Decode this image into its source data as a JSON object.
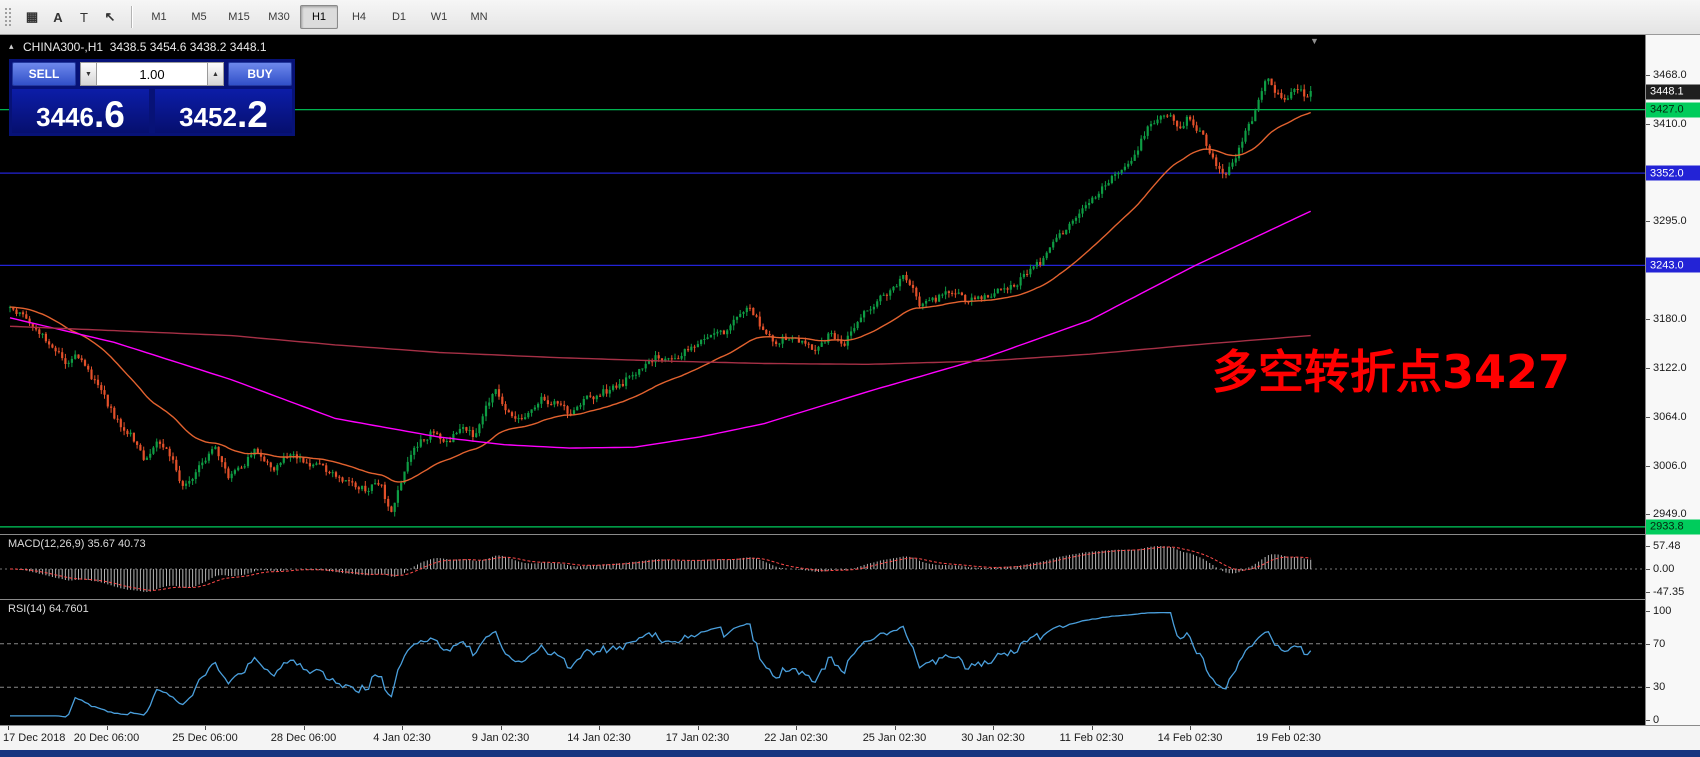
{
  "toolbar": {
    "icons": [
      {
        "name": "market-watch-icon",
        "glyph": "▦"
      },
      {
        "name": "insert-text-icon",
        "glyph": "A"
      },
      {
        "name": "text-label-icon",
        "glyph": "T"
      },
      {
        "name": "drawing-tools-icon",
        "glyph": "↖"
      }
    ],
    "timeframes": [
      "M1",
      "M5",
      "M15",
      "M30",
      "H1",
      "H4",
      "D1",
      "W1",
      "MN"
    ],
    "active_timeframe": "H1"
  },
  "chart": {
    "header": "CHINA300-,H1  3438.5 3454.6 3438.2 3448.1",
    "annotation": "多空转折点3427",
    "annotation_color": "#FF0000",
    "toggle_glyph": "▴",
    "shift_marker_glyph": "▼"
  },
  "trade_panel": {
    "sell_label": "SELL",
    "buy_label": "BUY",
    "volume": "1.00",
    "volume_down_glyph": "▼",
    "volume_up_glyph": "▲",
    "sell_price_main": "3446",
    "sell_price_pip": ".6",
    "buy_price_main": "3452",
    "buy_price_pip": ".2"
  },
  "indicators": {
    "macd_label": "MACD(12,26,9) 35.67 40.73",
    "rsi_label": "RSI(14) 64.7601"
  },
  "chart_data": {
    "type": "candlestick",
    "symbol": "CHINA300-",
    "timeframe": "H1",
    "header_ohlc": {
      "open": 3438.5,
      "high": 3454.6,
      "low": 3438.2,
      "close": 3448.1
    },
    "bid": 3446.6,
    "ask": 3452.2,
    "price_range_view": [
      2920,
      3485
    ],
    "price_axis_labels": [
      3468.0,
      3410.0,
      3295.0,
      3180.0,
      3122.0,
      3064.0,
      3006.0,
      2949.0
    ],
    "price_badges": [
      {
        "value": "3448.1",
        "price": 3448.1,
        "type": "last"
      },
      {
        "value": "3427.0",
        "price": 3427.0,
        "type": "green"
      },
      {
        "value": "3352.0",
        "price": 3352.0,
        "type": "blue"
      },
      {
        "value": "3243.0",
        "price": 3243.0,
        "type": "blue"
      },
      {
        "value": "2933.8",
        "price": 2933.8,
        "type": "green"
      }
    ],
    "hlines": [
      {
        "price": 3427.0,
        "color": "#00CC5C"
      },
      {
        "price": 3352.0,
        "color": "#2323D6"
      },
      {
        "price": 3243.0,
        "color": "#2323D6"
      },
      {
        "price": 2933.8,
        "color": "#00CC5C"
      }
    ],
    "time_labels": [
      "17 Dec 2018",
      "20 Dec 06:00",
      "25 Dec 06:00",
      "28 Dec 06:00",
      "4 Jan 02:30",
      "9 Jan 02:30",
      "14 Jan 02:30",
      "17 Jan 02:30",
      "22 Jan 02:30",
      "25 Jan 02:30",
      "30 Jan 02:30",
      "11 Feb 02:30",
      "14 Feb 02:30",
      "19 Feb 02:30"
    ],
    "candles": {
      "count": 400,
      "up_color": "#0E9C44",
      "down_color": "#E3502A",
      "close_waypoints": [
        [
          0.0,
          3192
        ],
        [
          0.01,
          3183
        ],
        [
          0.022,
          3166
        ],
        [
          0.032,
          3149
        ],
        [
          0.042,
          3127
        ],
        [
          0.05,
          3139
        ],
        [
          0.06,
          3117
        ],
        [
          0.072,
          3090
        ],
        [
          0.08,
          3064
        ],
        [
          0.092,
          3044
        ],
        [
          0.104,
          3012
        ],
        [
          0.114,
          3034
        ],
        [
          0.124,
          3016
        ],
        [
          0.132,
          2978
        ],
        [
          0.14,
          2990
        ],
        [
          0.15,
          3014
        ],
        [
          0.158,
          3030
        ],
        [
          0.168,
          2992
        ],
        [
          0.178,
          3004
        ],
        [
          0.19,
          3026
        ],
        [
          0.202,
          3000
        ],
        [
          0.214,
          3018
        ],
        [
          0.228,
          3010
        ],
        [
          0.24,
          3004
        ],
        [
          0.25,
          2996
        ],
        [
          0.262,
          2986
        ],
        [
          0.274,
          2976
        ],
        [
          0.284,
          2988
        ],
        [
          0.292,
          2950
        ],
        [
          0.3,
          2980
        ],
        [
          0.308,
          3022
        ],
        [
          0.318,
          3038
        ],
        [
          0.326,
          3046
        ],
        [
          0.336,
          3034
        ],
        [
          0.348,
          3052
        ],
        [
          0.358,
          3040
        ],
        [
          0.366,
          3080
        ],
        [
          0.373,
          3094
        ],
        [
          0.382,
          3072
        ],
        [
          0.39,
          3061
        ],
        [
          0.4,
          3071
        ],
        [
          0.408,
          3086
        ],
        [
          0.42,
          3078
        ],
        [
          0.432,
          3068
        ],
        [
          0.444,
          3086
        ],
        [
          0.456,
          3093
        ],
        [
          0.468,
          3101
        ],
        [
          0.474,
          3107
        ],
        [
          0.486,
          3124
        ],
        [
          0.498,
          3136
        ],
        [
          0.51,
          3128
        ],
        [
          0.522,
          3146
        ],
        [
          0.534,
          3156
        ],
        [
          0.548,
          3163
        ],
        [
          0.56,
          3184
        ],
        [
          0.568,
          3193
        ],
        [
          0.576,
          3174
        ],
        [
          0.588,
          3151
        ],
        [
          0.6,
          3159
        ],
        [
          0.612,
          3148
        ],
        [
          0.62,
          3145
        ],
        [
          0.63,
          3161
        ],
        [
          0.642,
          3151
        ],
        [
          0.654,
          3181
        ],
        [
          0.666,
          3201
        ],
        [
          0.678,
          3212
        ],
        [
          0.688,
          3231
        ],
        [
          0.7,
          3196
        ],
        [
          0.712,
          3203
        ],
        [
          0.724,
          3212
        ],
        [
          0.736,
          3201
        ],
        [
          0.748,
          3207
        ],
        [
          0.76,
          3212
        ],
        [
          0.77,
          3217
        ],
        [
          0.78,
          3231
        ],
        [
          0.792,
          3247
        ],
        [
          0.804,
          3272
        ],
        [
          0.816,
          3293
        ],
        [
          0.828,
          3313
        ],
        [
          0.84,
          3333
        ],
        [
          0.852,
          3353
        ],
        [
          0.864,
          3373
        ],
        [
          0.874,
          3402
        ],
        [
          0.882,
          3417
        ],
        [
          0.89,
          3422
        ],
        [
          0.898,
          3405
        ],
        [
          0.906,
          3417
        ],
        [
          0.915,
          3401
        ],
        [
          0.924,
          3373
        ],
        [
          0.932,
          3347
        ],
        [
          0.941,
          3363
        ],
        [
          0.949,
          3397
        ],
        [
          0.957,
          3423
        ],
        [
          0.962,
          3450
        ],
        [
          0.966,
          3465
        ],
        [
          0.974,
          3447
        ],
        [
          0.982,
          3437
        ],
        [
          0.989,
          3455
        ],
        [
          0.996,
          3441
        ],
        [
          1.0,
          3448
        ]
      ]
    },
    "moving_averages": [
      {
        "name": "fast",
        "type": "ema",
        "period": 34,
        "color": "#E2622F"
      },
      {
        "name": "mid",
        "color": "#FF00FF",
        "waypoints": [
          [
            0,
            3181
          ],
          [
            0.08,
            3152
          ],
          [
            0.17,
            3108
          ],
          [
            0.25,
            3062
          ],
          [
            0.33,
            3040
          ],
          [
            0.38,
            3031
          ],
          [
            0.43,
            3027
          ],
          [
            0.48,
            3028
          ],
          [
            0.53,
            3040
          ],
          [
            0.58,
            3056
          ],
          [
            0.66,
            3094
          ],
          [
            0.75,
            3134
          ],
          [
            0.83,
            3178
          ],
          [
            0.91,
            3242
          ],
          [
            1,
            3307
          ]
        ]
      },
      {
        "name": "slow",
        "color": "#A63046",
        "waypoints": [
          [
            0,
            3171
          ],
          [
            0.17,
            3160
          ],
          [
            0.25,
            3149
          ],
          [
            0.33,
            3140
          ],
          [
            0.42,
            3134
          ],
          [
            0.5,
            3130
          ],
          [
            0.58,
            3127
          ],
          [
            0.66,
            3126
          ],
          [
            0.75,
            3130
          ],
          [
            0.83,
            3138
          ],
          [
            0.91,
            3149
          ],
          [
            1,
            3160
          ]
        ]
      }
    ],
    "macd": {
      "params": "12,26,9",
      "values": [
        35.67,
        40.73
      ],
      "scale": [
        57.48,
        0.0,
        -47.35
      ],
      "histogram_color": "#B4B4B4",
      "signal_color": "#FF4A4A"
    },
    "rsi": {
      "period": 14,
      "value": 64.7601,
      "scale": [
        100,
        70,
        30,
        0
      ],
      "levels": [
        70,
        30
      ],
      "color": "#4A9FDC"
    }
  }
}
